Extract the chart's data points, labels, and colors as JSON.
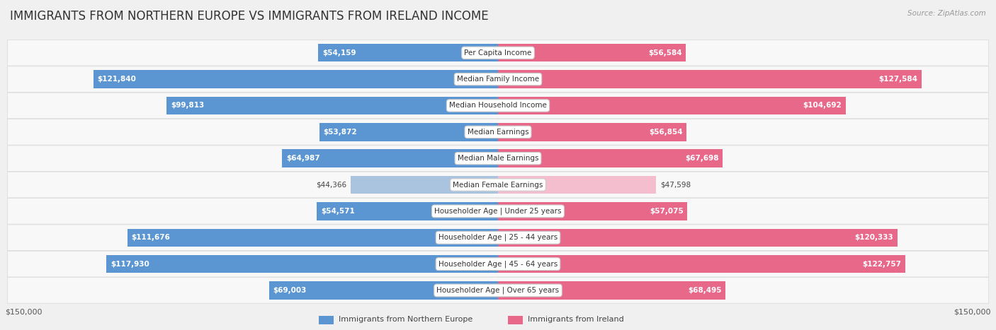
{
  "title": "IMMIGRANTS FROM NORTHERN EUROPE VS IMMIGRANTS FROM IRELAND INCOME",
  "source": "Source: ZipAtlas.com",
  "categories": [
    "Per Capita Income",
    "Median Family Income",
    "Median Household Income",
    "Median Earnings",
    "Median Male Earnings",
    "Median Female Earnings",
    "Householder Age | Under 25 years",
    "Householder Age | 25 - 44 years",
    "Householder Age | 45 - 64 years",
    "Householder Age | Over 65 years"
  ],
  "left_values": [
    54159,
    121840,
    99813,
    53872,
    64987,
    44366,
    54571,
    111676,
    117930,
    69003
  ],
  "right_values": [
    56584,
    127584,
    104692,
    56854,
    67698,
    47598,
    57075,
    120333,
    122757,
    68495
  ],
  "left_labels": [
    "$54,159",
    "$121,840",
    "$99,813",
    "$53,872",
    "$64,987",
    "$44,366",
    "$54,571",
    "$111,676",
    "$117,930",
    "$69,003"
  ],
  "right_labels": [
    "$56,584",
    "$127,584",
    "$104,692",
    "$56,854",
    "$67,698",
    "$47,598",
    "$57,075",
    "$120,333",
    "$122,757",
    "$68,495"
  ],
  "max_value": 150000,
  "left_color_light": "#aac4e0",
  "left_color_dark": "#5b96d2",
  "right_color_light": "#f5bece",
  "right_color_dark": "#e8688a",
  "label_left": "Immigrants from Northern Europe",
  "label_right": "Immigrants from Ireland",
  "bg_color": "#f0f0f0",
  "row_bg_color": "#f8f8f8",
  "row_border_color": "#dddddd",
  "axis_label_left": "$150,000",
  "axis_label_right": "$150,000",
  "title_fontsize": 12,
  "source_fontsize": 7.5,
  "label_fontsize": 8,
  "value_fontsize": 7.5,
  "category_fontsize": 7.5,
  "threshold_ratio": 0.35
}
